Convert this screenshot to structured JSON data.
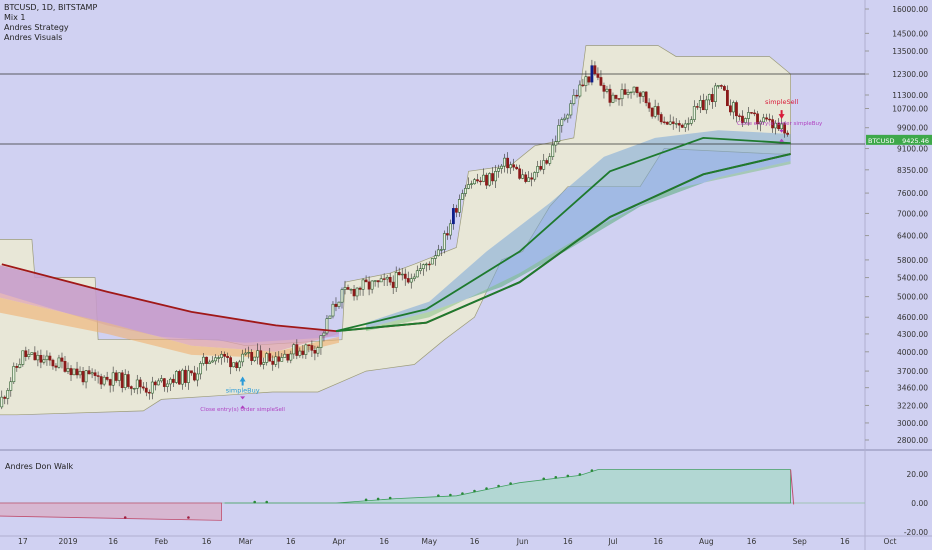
{
  "legend": {
    "title": "BTCUSD, 1D, BITSTAMP",
    "line2": "Mix 1",
    "line3": "Andres Strategy",
    "line4": "Andres Visuals"
  },
  "subpane": {
    "title": "Andres Don Walk"
  },
  "colors": {
    "background": "#d0d1f2",
    "up_candle": "#2e5e2e",
    "down_candle": "#8b1a1a",
    "blue_candle": "#0e1f8a",
    "ema_red": "#a01818",
    "ema_green": "#1e7a2e",
    "price_tag": "#3ea84a",
    "buy_label": "#2a9ad8",
    "sell_label": "#d81b3a",
    "close_label": "#b040c0"
  },
  "chart_data": [
    {
      "type": "line",
      "title": "BTCUSD, 1D, BITSTAMP",
      "y_axis_ticks": [
        "16000.00",
        "14500.00",
        "13500.00",
        "12300.00",
        "11300.00",
        "10700.00",
        "9900.00",
        "9100.00",
        "8350.00",
        "7600.00",
        "7000.00",
        "6400.00",
        "5800.00",
        "5400.00",
        "5000.00",
        "4600.00",
        "4300.00",
        "4000.00",
        "3700.00",
        "3460.00",
        "3220.00",
        "3000.00",
        "2800.00"
      ],
      "x_axis_ticks": [
        "17",
        "2019",
        "16",
        "Feb",
        "16",
        "Mar",
        "16",
        "Apr",
        "16",
        "May",
        "16",
        "Jun",
        "16",
        "Jul",
        "16",
        "Aug",
        "16",
        "Sep",
        "16",
        "Oct"
      ],
      "ylim": [
        2650,
        16500
      ],
      "y_scale": "log",
      "horizontal_lines": [
        12300,
        9270
      ],
      "last_price_label": {
        "symbol": "BTCUSD",
        "value": "9425.46"
      },
      "series": [
        {
          "role": "close",
          "x": [
            "2018-12-10",
            "2018-12-17",
            "2018-12-24",
            "2018-12-31",
            "2019-01-07",
            "2019-01-14",
            "2019-01-21",
            "2019-01-28",
            "2019-02-04",
            "2019-02-11",
            "2019-02-18",
            "2019-02-25",
            "2019-03-04",
            "2019-03-11",
            "2019-03-18",
            "2019-03-25",
            "2019-04-01",
            "2019-04-08",
            "2019-04-15",
            "2019-04-22",
            "2019-04-29",
            "2019-05-06",
            "2019-05-13",
            "2019-05-20",
            "2019-05-27",
            "2019-06-03",
            "2019-06-10",
            "2019-06-17",
            "2019-06-24",
            "2019-07-01",
            "2019-07-08",
            "2019-07-15",
            "2019-07-22",
            "2019-07-29",
            "2019-08-05",
            "2019-08-12",
            "2019-08-19",
            "2019-08-26",
            "2019-08-29"
          ],
          "y": [
            3300,
            3950,
            3850,
            3800,
            3600,
            3600,
            3550,
            3450,
            3600,
            3620,
            3950,
            3850,
            3900,
            3920,
            4030,
            4100,
            5000,
            5200,
            5250,
            5400,
            5600,
            6300,
            7950,
            8000,
            8600,
            7900,
            8900,
            11000,
            12400,
            11000,
            11800,
            10500,
            9900,
            10600,
            11600,
            10300,
            10200,
            9800,
            9425
          ]
        },
        {
          "role": "ema_slow",
          "x": [
            "2018-12-10",
            "2019-01-14",
            "2019-02-11",
            "2019-03-11",
            "2019-03-31",
            "2019-04-30",
            "2019-05-31",
            "2019-06-30",
            "2019-07-31",
            "2019-08-29"
          ],
          "y": [
            5700,
            5100,
            4700,
            4450,
            4350,
            4500,
            5300,
            6900,
            8200,
            8900
          ]
        },
        {
          "role": "ema_fast",
          "x": [
            "2019-03-31",
            "2019-04-30",
            "2019-05-31",
            "2019-06-30",
            "2019-07-31",
            "2019-08-29"
          ],
          "y": [
            4350,
            4750,
            6000,
            8300,
            9500,
            9300
          ]
        }
      ],
      "annotations": [
        "simpleBuy",
        "Close entry(s) order simpleSell",
        "simpleSell",
        "Close entry(s) order simpleBuy"
      ]
    },
    {
      "type": "area",
      "title": "Andres Don Walk",
      "y_axis_ticks": [
        "20.00",
        "0.00",
        "-20.00"
      ],
      "ylim": [
        -22,
        34
      ],
      "series": [
        {
          "x": [
            "2018-12-10",
            "2019-02-21",
            "2019-02-22",
            "2019-03-31",
            "2019-04-20",
            "2019-05-10",
            "2019-05-31",
            "2019-06-20",
            "2019-06-26",
            "2019-08-29",
            "2019-08-30"
          ],
          "y": [
            -9,
            -12,
            0,
            0,
            3,
            5,
            14,
            19,
            23,
            23,
            -1
          ]
        }
      ]
    }
  ]
}
